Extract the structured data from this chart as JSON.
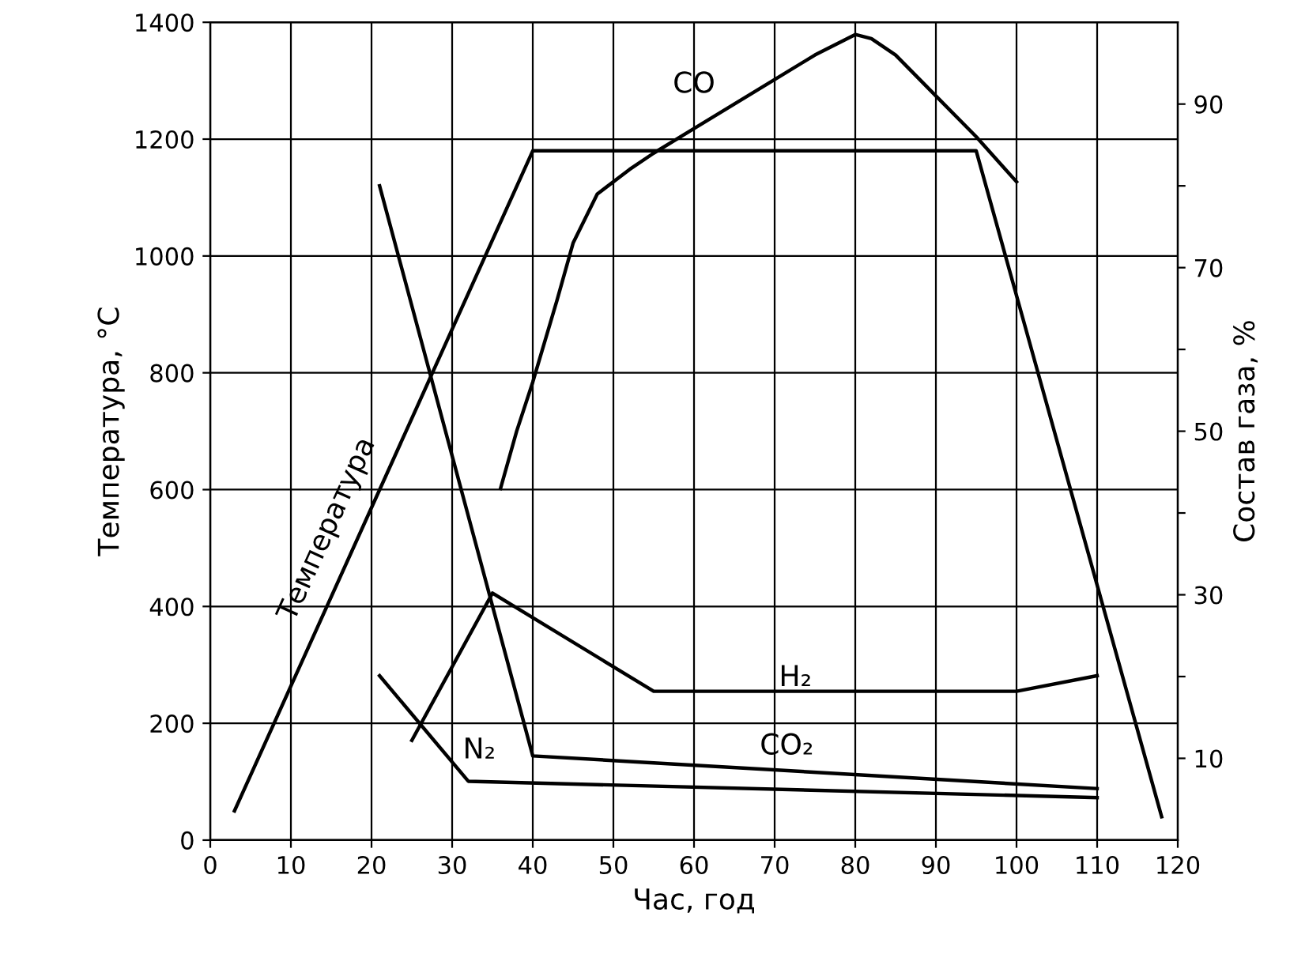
{
  "chart_data": {
    "type": "line",
    "xlabel": "Час, год",
    "ylabel": "Температура, °С",
    "y2label": "Состав газа, %",
    "series": [
      {
        "name": "Температура",
        "color": "#000000",
        "x": [
          3,
          40,
          95,
          118
        ],
        "values": [
          50,
          1180,
          1180,
          40
        ]
      },
      {
        "name": "CO",
        "color": "#000000",
        "axis": "y2",
        "x": [
          36,
          38,
          40,
          43,
          45,
          48,
          52,
          55,
          60,
          65,
          70,
          75,
          80,
          82,
          85,
          90,
          95,
          100
        ],
        "values": [
          43,
          50,
          56,
          66,
          73,
          79,
          82,
          84,
          87,
          90,
          93,
          96,
          98.5,
          98,
          96,
          91,
          86,
          80.5
        ]
      },
      {
        "name": "CO₂",
        "color": "#000000",
        "axis": "y2",
        "x": [
          21,
          40,
          110
        ],
        "values": [
          80,
          10.3,
          6.3
        ]
      },
      {
        "name": "H₂",
        "color": "#000000",
        "axis": "y2",
        "x": [
          25,
          35,
          55,
          100,
          110
        ],
        "values": [
          12.2,
          30.2,
          18.2,
          18.2,
          20.1
        ]
      },
      {
        "name": "N₂",
        "color": "#000000",
        "axis": "y2",
        "x": [
          21,
          32,
          110
        ],
        "values": [
          20.1,
          7.2,
          5.2
        ]
      }
    ],
    "xlim": [
      0,
      120
    ],
    "xticks": [
      0,
      10,
      20,
      30,
      40,
      50,
      60,
      70,
      80,
      90,
      100,
      110,
      120
    ],
    "ylim": [
      0,
      1400
    ],
    "yticks": [
      0,
      200,
      400,
      600,
      800,
      1000,
      1200,
      1400
    ],
    "y2lim": [
      0,
      100
    ],
    "y2ticks": [
      {
        "value": 10,
        "label": "10"
      },
      {
        "value": 20,
        "label": null
      },
      {
        "value": 30,
        "label": "30"
      },
      {
        "value": 40,
        "label": null
      },
      {
        "value": 50,
        "label": "50"
      },
      {
        "value": 60,
        "label": null
      },
      {
        "value": 70,
        "label": "70"
      },
      {
        "value": 80,
        "label": null
      },
      {
        "value": 90,
        "label": "90"
      }
    ],
    "grid": true,
    "legend": false,
    "marker": "none",
    "line_style": "solid"
  }
}
